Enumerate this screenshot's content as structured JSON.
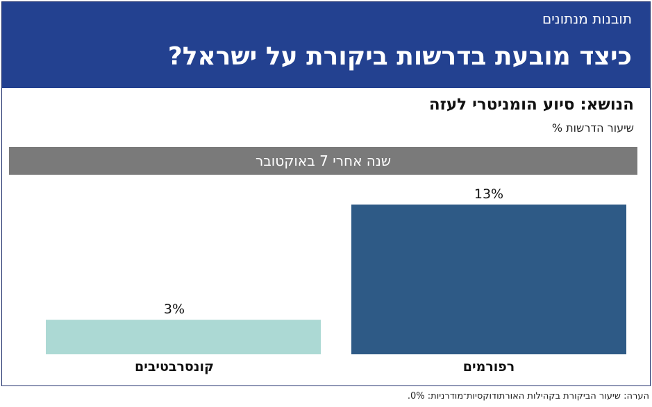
{
  "header": {
    "kicker": "תובנות מנתונים",
    "headline": "כיצד מובעת בדרשות ביקורת על ישראל?"
  },
  "subject": "הנושא: סיוע הומניטרי לעזה",
  "metric": "שיעור הדרשות %",
  "period": "שנה אחרי 7 באוקטובר",
  "footnote": "הערה: שיעור הביקורת בקהילות האורתודוקסיות־מודרניות: 0%.",
  "colors": {
    "header_bg": "#234190",
    "period_band": "#7a7a7a",
    "reform": "#2e5a86",
    "conservative": "#acd9d4"
  },
  "chart_data": {
    "type": "bar",
    "categories": [
      "רפורמים",
      "קונסרבטיבים"
    ],
    "values": [
      13,
      3
    ],
    "value_labels": [
      "13%",
      "3%"
    ],
    "ylim": [
      0,
      15
    ],
    "grid": false
  }
}
